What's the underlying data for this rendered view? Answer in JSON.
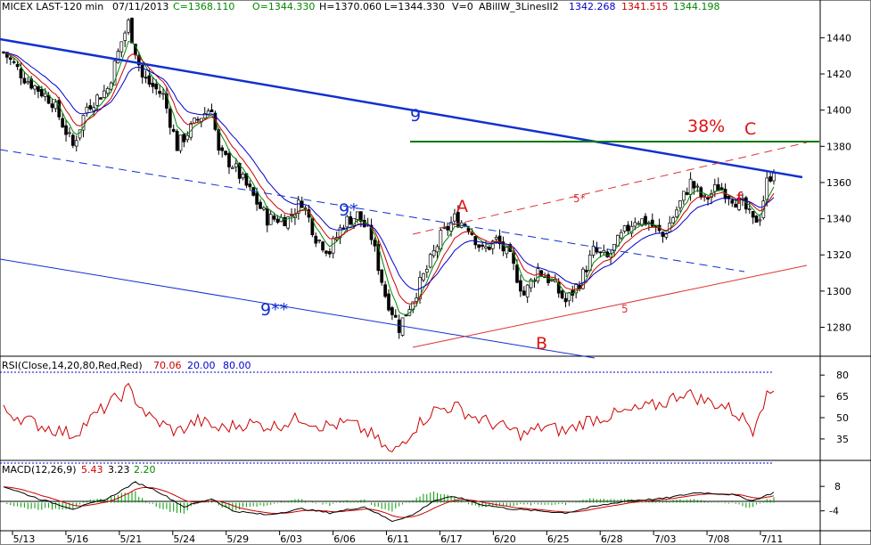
{
  "header": {
    "symbol": "MICEX LAST-120 min",
    "date": "07/11/2013",
    "c_label": "C=1368.110",
    "o_label": "O=1344.330",
    "h_label": "H=1370.060",
    "l_label": "L=1344.330",
    "v_label": "V=0",
    "indicator_name": "ABillW_3LinesII2",
    "ind_v1": "1342.268",
    "ind_v2": "1341.515",
    "ind_v3": "1344.198"
  },
  "colors": {
    "blue": "#0000cc",
    "red": "#cc0000",
    "green": "#008800",
    "black": "#000000",
    "trend_blue": "#1030d0",
    "level_green": "#007700",
    "annot_red": "#dd1111"
  },
  "chart_data": [
    {
      "type": "candlestick",
      "name": "price",
      "ylim": [
        1265,
        1452
      ],
      "y_ticks": [
        1280,
        1300,
        1320,
        1340,
        1360,
        1380,
        1400,
        1420,
        1440
      ],
      "x_ticks": [
        "5/13",
        "5/16",
        "5/21",
        "5/24",
        "5/29",
        "6/03",
        "6/06",
        "6/11",
        "6/17",
        "6/20",
        "6/25",
        "6/28",
        "7/03",
        "7/08",
        "7/11"
      ],
      "waypoints": [
        [
          0,
          1432
        ],
        [
          6,
          1418
        ],
        [
          14,
          1405
        ],
        [
          20,
          1380
        ],
        [
          24,
          1402
        ],
        [
          30,
          1412
        ],
        [
          34,
          1438
        ],
        [
          36,
          1448
        ],
        [
          40,
          1418
        ],
        [
          46,
          1408
        ],
        [
          50,
          1380
        ],
        [
          56,
          1395
        ],
        [
          60,
          1402
        ],
        [
          62,
          1376
        ],
        [
          66,
          1370
        ],
        [
          70,
          1358
        ],
        [
          76,
          1340
        ],
        [
          82,
          1340
        ],
        [
          86,
          1350
        ],
        [
          90,
          1330
        ],
        [
          94,
          1322
        ],
        [
          98,
          1338
        ],
        [
          102,
          1342
        ],
        [
          106,
          1330
        ],
        [
          110,
          1298
        ],
        [
          114,
          1280
        ],
        [
          118,
          1296
        ],
        [
          122,
          1312
        ],
        [
          126,
          1330
        ],
        [
          130,
          1340
        ],
        [
          134,
          1336
        ],
        [
          138,
          1322
        ],
        [
          142,
          1328
        ],
        [
          146,
          1318
        ],
        [
          150,
          1298
        ],
        [
          154,
          1312
        ],
        [
          158,
          1305
        ],
        [
          162,
          1294
        ],
        [
          166,
          1305
        ],
        [
          170,
          1322
        ],
        [
          174,
          1318
        ],
        [
          178,
          1330
        ],
        [
          182,
          1340
        ],
        [
          186,
          1338
        ],
        [
          190,
          1330
        ],
        [
          194,
          1345
        ],
        [
          198,
          1360
        ],
        [
          202,
          1350
        ],
        [
          206,
          1358
        ],
        [
          210,
          1352
        ],
        [
          214,
          1345
        ],
        [
          216,
          1338
        ],
        [
          218,
          1342
        ],
        [
          220,
          1360
        ],
        [
          222,
          1368
        ]
      ],
      "bar_count": 223,
      "annotations": [
        "9",
        "9*",
        "9**",
        "5*",
        "5",
        "A",
        "B",
        "C",
        "f",
        "38%"
      ]
    },
    {
      "type": "line",
      "name": "RSI",
      "title": "RSI(Close,14,20,80,Red,Red)",
      "values_label": "70.06",
      "level_lo": "20.00",
      "level_hi": "80.00",
      "ylim": [
        18,
        82
      ],
      "y_ticks": [
        35,
        50,
        65,
        80
      ],
      "waypoints": [
        [
          0,
          55
        ],
        [
          10,
          45
        ],
        [
          20,
          38
        ],
        [
          28,
          55
        ],
        [
          36,
          70
        ],
        [
          42,
          50
        ],
        [
          50,
          40
        ],
        [
          56,
          48
        ],
        [
          62,
          42
        ],
        [
          70,
          46
        ],
        [
          78,
          44
        ],
        [
          86,
          50
        ],
        [
          92,
          44
        ],
        [
          100,
          46
        ],
        [
          106,
          38
        ],
        [
          112,
          24
        ],
        [
          118,
          42
        ],
        [
          124,
          55
        ],
        [
          130,
          58
        ],
        [
          136,
          50
        ],
        [
          142,
          45
        ],
        [
          150,
          38
        ],
        [
          156,
          44
        ],
        [
          162,
          40
        ],
        [
          168,
          48
        ],
        [
          176,
          52
        ],
        [
          182,
          55
        ],
        [
          190,
          60
        ],
        [
          196,
          68
        ],
        [
          202,
          62
        ],
        [
          208,
          58
        ],
        [
          214,
          48
        ],
        [
          216,
          42
        ],
        [
          218,
          58
        ],
        [
          222,
          70
        ]
      ]
    },
    {
      "type": "line",
      "name": "MACD",
      "title": "MACD(12,26,9)",
      "values": [
        "5.43",
        "3.23",
        "2.20"
      ],
      "ylim": [
        -12,
        12
      ],
      "y_ticks": [
        8,
        -4
      ],
      "macd_waypoints": [
        [
          0,
          8
        ],
        [
          10,
          2
        ],
        [
          20,
          -3
        ],
        [
          30,
          2
        ],
        [
          38,
          10
        ],
        [
          44,
          6
        ],
        [
          52,
          -2
        ],
        [
          60,
          2
        ],
        [
          66,
          -4
        ],
        [
          76,
          -6
        ],
        [
          86,
          -3
        ],
        [
          94,
          -5
        ],
        [
          104,
          -2
        ],
        [
          112,
          -9
        ],
        [
          118,
          -6
        ],
        [
          124,
          1
        ],
        [
          130,
          3
        ],
        [
          138,
          -1
        ],
        [
          146,
          -3
        ],
        [
          154,
          -4
        ],
        [
          162,
          -5
        ],
        [
          170,
          -2
        ],
        [
          180,
          1
        ],
        [
          190,
          2
        ],
        [
          200,
          5
        ],
        [
          210,
          4
        ],
        [
          216,
          1
        ],
        [
          222,
          5
        ]
      ]
    }
  ]
}
